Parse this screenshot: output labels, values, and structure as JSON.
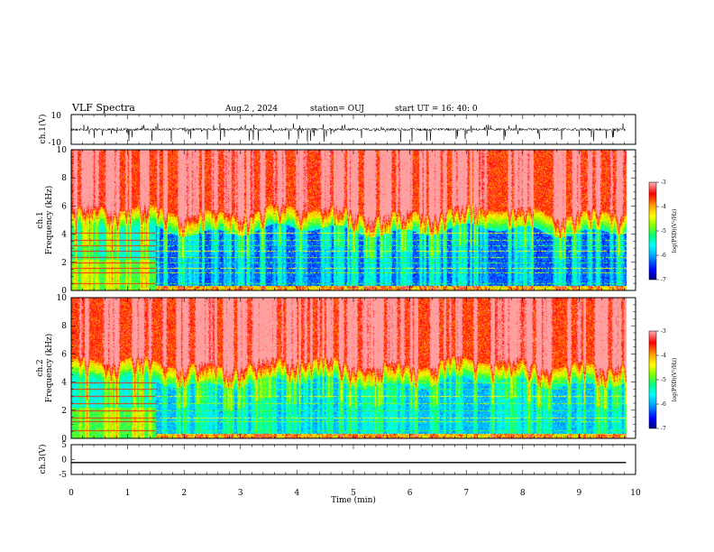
{
  "header": {
    "title": "VLF Spectra",
    "date": "Aug.2 , 2024",
    "station": "station= OUJ",
    "start_ut": "start UT = 16: 40: 0"
  },
  "chart_data": [
    {
      "type": "line",
      "panel": "ch1-waveform",
      "ylabel": "ch.1(V)",
      "ytick_labels": [
        "10",
        "-10"
      ],
      "ylim": [
        -10,
        10
      ],
      "baseline_value": 0,
      "color": "#000000"
    },
    {
      "type": "heatmap",
      "panel": "ch1-spectrogram",
      "ylabel_channel": "ch.1",
      "ylabel": "Frequency (kHz)",
      "ylim": [
        0,
        10
      ],
      "yticks": [
        0,
        2,
        4,
        6,
        8,
        10
      ],
      "colorbar": {
        "label": "log(PSD)(V²/Hz)",
        "range": [
          -7,
          -3
        ],
        "ticks": [
          -3,
          -4,
          -5,
          -6,
          -7
        ]
      },
      "quiet_band_upper_khz": 4.3,
      "noise_lines_khz": [
        0.5,
        1.3,
        1.6,
        2.0,
        2.4,
        2.8,
        3.2,
        3.6,
        4.1
      ]
    },
    {
      "type": "heatmap",
      "panel": "ch2-spectrogram",
      "ylabel_channel": "ch.2",
      "ylabel": "Frequency (kHz)",
      "ylim": [
        0,
        10
      ],
      "yticks": [
        0,
        2,
        4,
        6,
        8,
        10
      ],
      "colorbar": {
        "label": "log(PSD)(V²/Hz)",
        "range": [
          -7,
          -3
        ],
        "ticks": [
          -3,
          -4,
          -5,
          -6,
          -7
        ]
      },
      "quiet_band_upper_khz": 4.0,
      "noise_lines_khz": [
        0.6,
        1.2,
        1.5,
        2.0,
        2.5,
        3.0,
        3.5,
        4.0
      ]
    },
    {
      "type": "line",
      "panel": "ch3",
      "ylabel": "ch.3(V)",
      "ylim": [
        -5,
        5
      ],
      "yticks": [
        -5,
        0,
        5
      ],
      "constant_value": -1,
      "color": "#000000"
    }
  ],
  "xaxis": {
    "label": "Time (min)",
    "range": [
      0,
      10
    ],
    "ticks": [
      0,
      1,
      2,
      3,
      4,
      5,
      6,
      7,
      8,
      9,
      10
    ],
    "data_end_min": 9.83,
    "regime_change_min": 1.5
  },
  "colors": {
    "scale": [
      "#000080",
      "#0000ff",
      "#00aaff",
      "#00ffff",
      "#00ff80",
      "#80ff00",
      "#ffff00",
      "#ffaa00",
      "#ff0000",
      "#ffa0a0"
    ]
  }
}
